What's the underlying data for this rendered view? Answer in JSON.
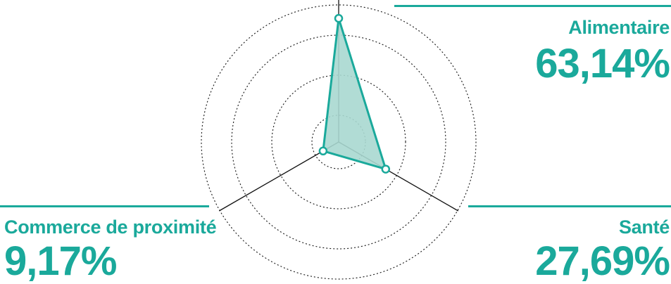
{
  "chart_data": {
    "type": "radar",
    "colors": {
      "accent": "#1aa99b",
      "fill": "#a8d8d0",
      "axis": "#111111",
      "grid": "#222222"
    },
    "rlim": [
      0,
      70
    ],
    "grid_rings": 4,
    "grid_style": "dotted",
    "series": [
      {
        "values": [
          63.14,
          27.69,
          9.17
        ]
      }
    ],
    "categories": [
      {
        "label": "Alimentaire",
        "value_text": "63,14%",
        "value": 63.14,
        "angle_deg": 0
      },
      {
        "label": "Santé",
        "value_text": "27,69%",
        "value": 27.69,
        "angle_deg": 120
      },
      {
        "label": "Commerce de proximité",
        "value_text": "9,17%",
        "value": 9.17,
        "angle_deg": 240
      }
    ]
  }
}
